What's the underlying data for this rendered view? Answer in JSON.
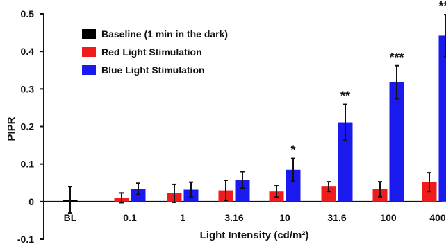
{
  "chart_data": {
    "type": "bar",
    "title": "",
    "xlabel": "Light Intensity (cd/m²)",
    "ylabel": "PIPR",
    "ylim": [
      -0.1,
      0.5
    ],
    "yticks": [
      "-0.1",
      "0",
      "0.1",
      "0.2",
      "0.3",
      "0.4",
      "0.5"
    ],
    "categories": [
      "BL",
      "0.1",
      "1",
      "3.16",
      "10",
      "31.6",
      "100",
      "400"
    ],
    "legend_position": "top-left",
    "grid": false,
    "series": [
      {
        "name": "Baseline (1 min in the dark)",
        "color": "#000000",
        "values": [
          0.005,
          null,
          null,
          null,
          null,
          null,
          null,
          null
        ],
        "errors": [
          0.035,
          null,
          null,
          null,
          null,
          null,
          null,
          null
        ]
      },
      {
        "name": "Red Light Stimulation",
        "color": "#ee1c1c",
        "values": [
          null,
          0.01,
          0.022,
          0.03,
          0.027,
          0.04,
          0.033,
          0.052
        ],
        "errors": [
          null,
          0.013,
          0.024,
          0.027,
          0.015,
          0.013,
          0.02,
          0.025
        ]
      },
      {
        "name": "Blue Light Stimulation",
        "color": "#1a1aee",
        "values": [
          null,
          0.034,
          0.032,
          0.058,
          0.085,
          0.211,
          0.318,
          0.442
        ],
        "errors": [
          null,
          0.015,
          0.02,
          0.022,
          0.03,
          0.048,
          0.044,
          0.056
        ]
      }
    ],
    "annotations": [
      {
        "category": "10",
        "text": "*"
      },
      {
        "category": "31.6",
        "text": "**"
      },
      {
        "category": "100",
        "text": "***"
      },
      {
        "category": "400",
        "text": "***"
      }
    ]
  }
}
